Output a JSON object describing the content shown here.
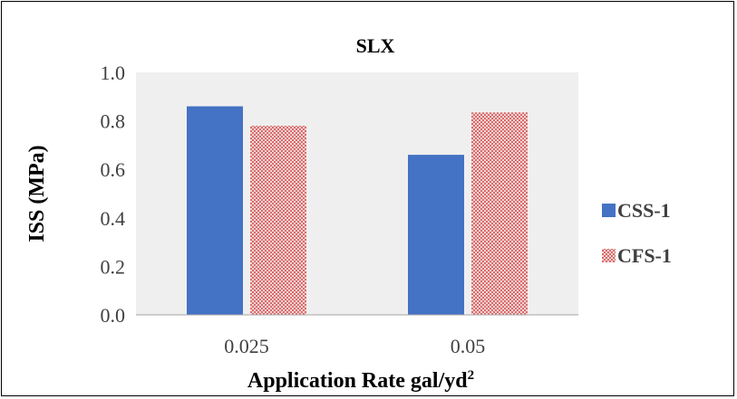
{
  "chart_data": {
    "type": "bar",
    "title": "SLX",
    "xlabel": "Application Rate gal/yd",
    "xlabel_superscript": "2",
    "ylabel": "ISS (MPa)",
    "categories": [
      "0.025",
      "0.05"
    ],
    "ylim": [
      0,
      1.0
    ],
    "yticks": [
      "0.0",
      "0.2",
      "0.4",
      "0.6",
      "0.8",
      "1.0"
    ],
    "grid": false,
    "legend_position": "right",
    "plot_background": "#efefef",
    "series": [
      {
        "name": "CSS-1",
        "values": [
          0.86,
          0.66
        ],
        "color": "#4472c4",
        "fill": "solid"
      },
      {
        "name": "CFS-1",
        "values": [
          0.78,
          0.835
        ],
        "color": "#e07a7a",
        "fill": "pattern"
      }
    ]
  }
}
